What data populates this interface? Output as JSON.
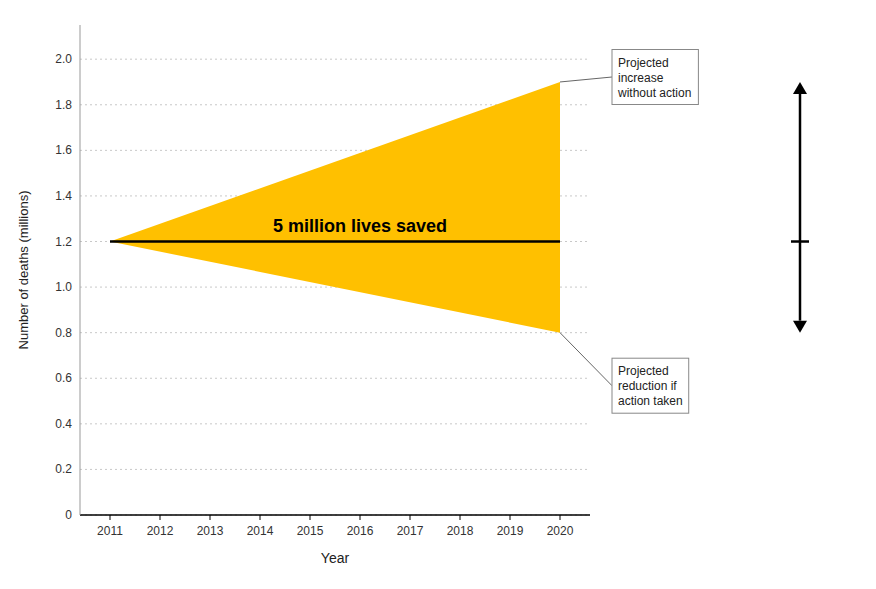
{
  "chart_data": {
    "type": "area",
    "xlabel": "Year",
    "ylabel": "Number of deaths (millions)",
    "xlim": [
      2010.4,
      2020.6
    ],
    "xticks": [
      2011,
      2012,
      2013,
      2014,
      2015,
      2016,
      2017,
      2018,
      2019,
      2020
    ],
    "ylim": [
      0,
      2.15
    ],
    "yticks": [
      0,
      0.2,
      0.4,
      0.6,
      0.8,
      {
        "value": 1,
        "label": "1.0"
      },
      1.2,
      1.4,
      1.6,
      1.8,
      {
        "value": 2,
        "label": "2.0"
      }
    ],
    "grid": true,
    "series": [
      {
        "type": "area",
        "color": "#FFC000",
        "x": [
          2011,
          2020
        ],
        "upper": [
          1.2,
          1.9
        ],
        "lower": [
          1.2,
          0.8
        ]
      },
      {
        "type": "line",
        "color": "#000000",
        "x": [
          2011,
          2020
        ],
        "values": [
          1.2,
          1.2
        ]
      }
    ],
    "center_label": {
      "text": "5 million lives saved",
      "x": 2016,
      "y": 1.2
    },
    "annotations": [
      {
        "text": "Projected\nincrease\nwithout action",
        "x": 2020,
        "y": 1.9
      },
      {
        "text": "Projected\nreduction if\naction taken",
        "x": 2020,
        "y": 0.8
      }
    ]
  }
}
